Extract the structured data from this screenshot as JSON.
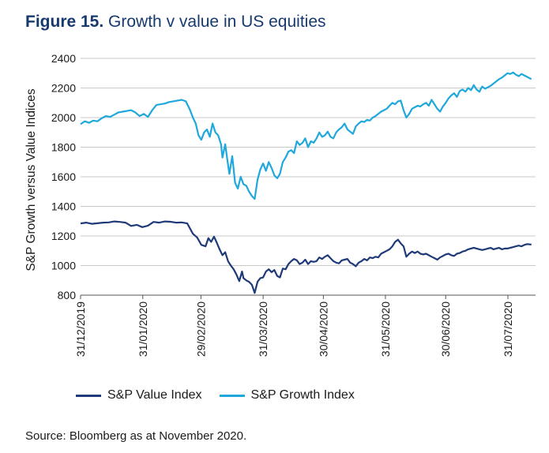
{
  "header": {
    "figure_label": "Figure 15.",
    "title": "Growth v value in US equities"
  },
  "source": "Source: Bloomberg as at November 2020.",
  "chart_data": {
    "type": "line",
    "title": "Growth v value in US equities",
    "xlabel": "",
    "ylabel": "S&P Growth versus Value Indices",
    "ylim": [
      800,
      2400
    ],
    "yticks": [
      800,
      1000,
      1200,
      1400,
      1600,
      1800,
      2000,
      2200,
      2400
    ],
    "xticks": [
      {
        "week": 0,
        "label": "31/12/2019"
      },
      {
        "week": 4.43,
        "label": "31/01/2020"
      },
      {
        "week": 8.57,
        "label": "29/02/2020"
      },
      {
        "week": 13,
        "label": "31/03/2020"
      },
      {
        "week": 17.29,
        "label": "30/04/2020"
      },
      {
        "week": 21.71,
        "label": "31/05/2020"
      },
      {
        "week": 26,
        "label": "30/06/2020"
      },
      {
        "week": 30.43,
        "label": "31/07/2020"
      }
    ],
    "x_unit": "weeks since 31/12/2019 (approx. daily)",
    "xlim": [
      0,
      32.4
    ],
    "series": [
      {
        "name": "S&P Value Index",
        "color": "#1f3a78",
        "points": [
          [
            0,
            1285
          ],
          [
            0.4,
            1290
          ],
          [
            0.8,
            1282
          ],
          [
            1.2,
            1286
          ],
          [
            1.6,
            1290
          ],
          [
            2,
            1292
          ],
          [
            2.4,
            1298
          ],
          [
            2.8,
            1295
          ],
          [
            3.2,
            1290
          ],
          [
            3.6,
            1268
          ],
          [
            4,
            1275
          ],
          [
            4.4,
            1260
          ],
          [
            4.8,
            1270
          ],
          [
            5.2,
            1295
          ],
          [
            5.6,
            1290
          ],
          [
            6,
            1298
          ],
          [
            6.4,
            1296
          ],
          [
            6.8,
            1290
          ],
          [
            7.2,
            1292
          ],
          [
            7.6,
            1285
          ],
          [
            8,
            1215
          ],
          [
            8.3,
            1190
          ],
          [
            8.6,
            1140
          ],
          [
            8.9,
            1130
          ],
          [
            9.1,
            1185
          ],
          [
            9.3,
            1160
          ],
          [
            9.5,
            1195
          ],
          [
            9.7,
            1155
          ],
          [
            9.9,
            1110
          ],
          [
            10.1,
            1070
          ],
          [
            10.3,
            1090
          ],
          [
            10.5,
            1030
          ],
          [
            10.7,
            1000
          ],
          [
            10.9,
            975
          ],
          [
            11.1,
            940
          ],
          [
            11.3,
            895
          ],
          [
            11.5,
            960
          ],
          [
            11.6,
            915
          ],
          [
            11.8,
            900
          ],
          [
            12,
            890
          ],
          [
            12.2,
            870
          ],
          [
            12.4,
            815
          ],
          [
            12.6,
            890
          ],
          [
            12.8,
            915
          ],
          [
            13,
            920
          ],
          [
            13.2,
            960
          ],
          [
            13.4,
            975
          ],
          [
            13.6,
            955
          ],
          [
            13.8,
            970
          ],
          [
            14,
            930
          ],
          [
            14.2,
            920
          ],
          [
            14.4,
            980
          ],
          [
            14.6,
            975
          ],
          [
            14.8,
            1010
          ],
          [
            15,
            1030
          ],
          [
            15.2,
            1045
          ],
          [
            15.4,
            1035
          ],
          [
            15.6,
            1010
          ],
          [
            15.8,
            1020
          ],
          [
            16,
            1040
          ],
          [
            16.2,
            1010
          ],
          [
            16.4,
            1030
          ],
          [
            16.6,
            1025
          ],
          [
            16.8,
            1030
          ],
          [
            17,
            1055
          ],
          [
            17.2,
            1045
          ],
          [
            17.4,
            1060
          ],
          [
            17.6,
            1070
          ],
          [
            17.8,
            1050
          ],
          [
            18,
            1030
          ],
          [
            18.2,
            1020
          ],
          [
            18.4,
            1015
          ],
          [
            18.6,
            1035
          ],
          [
            18.8,
            1040
          ],
          [
            19,
            1045
          ],
          [
            19.2,
            1020
          ],
          [
            19.4,
            1010
          ],
          [
            19.6,
            995
          ],
          [
            19.8,
            1020
          ],
          [
            20,
            1030
          ],
          [
            20.2,
            1045
          ],
          [
            20.4,
            1035
          ],
          [
            20.6,
            1055
          ],
          [
            20.8,
            1050
          ],
          [
            21,
            1060
          ],
          [
            21.2,
            1055
          ],
          [
            21.4,
            1080
          ],
          [
            21.6,
            1090
          ],
          [
            21.8,
            1100
          ],
          [
            22,
            1110
          ],
          [
            22.2,
            1130
          ],
          [
            22.4,
            1160
          ],
          [
            22.6,
            1175
          ],
          [
            22.8,
            1150
          ],
          [
            23,
            1130
          ],
          [
            23.2,
            1060
          ],
          [
            23.4,
            1080
          ],
          [
            23.6,
            1095
          ],
          [
            23.8,
            1085
          ],
          [
            24,
            1095
          ],
          [
            24.2,
            1080
          ],
          [
            24.4,
            1075
          ],
          [
            24.6,
            1080
          ],
          [
            24.8,
            1070
          ],
          [
            25,
            1060
          ],
          [
            25.2,
            1050
          ],
          [
            25.4,
            1040
          ],
          [
            25.6,
            1055
          ],
          [
            25.8,
            1065
          ],
          [
            26,
            1075
          ],
          [
            26.2,
            1080
          ],
          [
            26.4,
            1070
          ],
          [
            26.6,
            1065
          ],
          [
            26.8,
            1080
          ],
          [
            27,
            1085
          ],
          [
            27.2,
            1095
          ],
          [
            27.4,
            1100
          ],
          [
            27.6,
            1110
          ],
          [
            27.8,
            1115
          ],
          [
            28,
            1120
          ],
          [
            28.2,
            1115
          ],
          [
            28.4,
            1110
          ],
          [
            28.6,
            1105
          ],
          [
            28.8,
            1110
          ],
          [
            29,
            1115
          ],
          [
            29.2,
            1120
          ],
          [
            29.4,
            1110
          ],
          [
            29.6,
            1115
          ],
          [
            29.8,
            1120
          ],
          [
            30,
            1110
          ],
          [
            30.2,
            1115
          ],
          [
            30.4,
            1115
          ],
          [
            30.6,
            1120
          ],
          [
            30.8,
            1125
          ],
          [
            31,
            1130
          ],
          [
            31.2,
            1135
          ],
          [
            31.4,
            1130
          ],
          [
            31.6,
            1140
          ],
          [
            31.8,
            1145
          ],
          [
            32.1,
            1142
          ]
        ]
      },
      {
        "name": "S&P Growth Index",
        "color": "#1fa8dc",
        "points": [
          [
            0,
            1955
          ],
          [
            0.3,
            1975
          ],
          [
            0.6,
            1965
          ],
          [
            0.9,
            1980
          ],
          [
            1.2,
            1975
          ],
          [
            1.5,
            1995
          ],
          [
            1.8,
            2010
          ],
          [
            2.1,
            2005
          ],
          [
            2.4,
            2020
          ],
          [
            2.7,
            2035
          ],
          [
            3,
            2040
          ],
          [
            3.3,
            2045
          ],
          [
            3.6,
            2050
          ],
          [
            3.9,
            2035
          ],
          [
            4.2,
            2010
          ],
          [
            4.5,
            2025
          ],
          [
            4.8,
            2005
          ],
          [
            5.1,
            2050
          ],
          [
            5.4,
            2085
          ],
          [
            5.7,
            2090
          ],
          [
            6,
            2095
          ],
          [
            6.3,
            2105
          ],
          [
            6.6,
            2110
          ],
          [
            6.9,
            2115
          ],
          [
            7.2,
            2120
          ],
          [
            7.5,
            2110
          ],
          [
            7.8,
            2050
          ],
          [
            8,
            2000
          ],
          [
            8.2,
            1960
          ],
          [
            8.4,
            1880
          ],
          [
            8.6,
            1850
          ],
          [
            8.8,
            1900
          ],
          [
            9,
            1920
          ],
          [
            9.2,
            1870
          ],
          [
            9.4,
            1960
          ],
          [
            9.6,
            1900
          ],
          [
            9.8,
            1880
          ],
          [
            10,
            1820
          ],
          [
            10.1,
            1730
          ],
          [
            10.3,
            1820
          ],
          [
            10.5,
            1680
          ],
          [
            10.6,
            1620
          ],
          [
            10.8,
            1740
          ],
          [
            11,
            1560
          ],
          [
            11.2,
            1520
          ],
          [
            11.4,
            1600
          ],
          [
            11.6,
            1550
          ],
          [
            11.8,
            1540
          ],
          [
            12,
            1500
          ],
          [
            12.2,
            1470
          ],
          [
            12.4,
            1450
          ],
          [
            12.6,
            1580
          ],
          [
            12.8,
            1650
          ],
          [
            13,
            1690
          ],
          [
            13.2,
            1640
          ],
          [
            13.4,
            1700
          ],
          [
            13.6,
            1660
          ],
          [
            13.8,
            1610
          ],
          [
            14,
            1590
          ],
          [
            14.2,
            1620
          ],
          [
            14.4,
            1700
          ],
          [
            14.6,
            1730
          ],
          [
            14.8,
            1770
          ],
          [
            15,
            1780
          ],
          [
            15.2,
            1760
          ],
          [
            15.4,
            1840
          ],
          [
            15.6,
            1815
          ],
          [
            15.8,
            1830
          ],
          [
            16,
            1860
          ],
          [
            16.2,
            1800
          ],
          [
            16.4,
            1840
          ],
          [
            16.6,
            1830
          ],
          [
            16.8,
            1860
          ],
          [
            17,
            1900
          ],
          [
            17.2,
            1870
          ],
          [
            17.4,
            1880
          ],
          [
            17.6,
            1905
          ],
          [
            17.8,
            1870
          ],
          [
            18,
            1860
          ],
          [
            18.2,
            1900
          ],
          [
            18.4,
            1920
          ],
          [
            18.6,
            1935
          ],
          [
            18.8,
            1960
          ],
          [
            19,
            1920
          ],
          [
            19.2,
            1905
          ],
          [
            19.4,
            1890
          ],
          [
            19.6,
            1940
          ],
          [
            19.8,
            1960
          ],
          [
            20,
            1975
          ],
          [
            20.2,
            1970
          ],
          [
            20.4,
            1985
          ],
          [
            20.6,
            1980
          ],
          [
            20.8,
            2000
          ],
          [
            21,
            2010
          ],
          [
            21.2,
            2025
          ],
          [
            21.4,
            2040
          ],
          [
            21.6,
            2050
          ],
          [
            21.8,
            2060
          ],
          [
            22,
            2080
          ],
          [
            22.2,
            2100
          ],
          [
            22.4,
            2090
          ],
          [
            22.6,
            2110
          ],
          [
            22.8,
            2115
          ],
          [
            23,
            2050
          ],
          [
            23.2,
            2000
          ],
          [
            23.4,
            2025
          ],
          [
            23.6,
            2060
          ],
          [
            23.8,
            2070
          ],
          [
            24,
            2080
          ],
          [
            24.2,
            2075
          ],
          [
            24.4,
            2090
          ],
          [
            24.6,
            2100
          ],
          [
            24.8,
            2080
          ],
          [
            25,
            2120
          ],
          [
            25.2,
            2090
          ],
          [
            25.4,
            2060
          ],
          [
            25.6,
            2040
          ],
          [
            25.8,
            2075
          ],
          [
            26,
            2100
          ],
          [
            26.2,
            2130
          ],
          [
            26.4,
            2150
          ],
          [
            26.6,
            2165
          ],
          [
            26.8,
            2140
          ],
          [
            27,
            2180
          ],
          [
            27.2,
            2190
          ],
          [
            27.4,
            2175
          ],
          [
            27.6,
            2200
          ],
          [
            27.8,
            2185
          ],
          [
            28,
            2220
          ],
          [
            28.2,
            2190
          ],
          [
            28.4,
            2175
          ],
          [
            28.6,
            2210
          ],
          [
            28.8,
            2195
          ],
          [
            29,
            2205
          ],
          [
            29.2,
            2215
          ],
          [
            29.4,
            2230
          ],
          [
            29.6,
            2245
          ],
          [
            29.8,
            2260
          ],
          [
            30,
            2270
          ],
          [
            30.2,
            2285
          ],
          [
            30.4,
            2300
          ],
          [
            30.6,
            2295
          ],
          [
            30.8,
            2305
          ],
          [
            31,
            2290
          ],
          [
            31.2,
            2280
          ],
          [
            31.4,
            2295
          ],
          [
            31.6,
            2285
          ],
          [
            31.8,
            2275
          ],
          [
            32.1,
            2260
          ]
        ]
      }
    ]
  }
}
